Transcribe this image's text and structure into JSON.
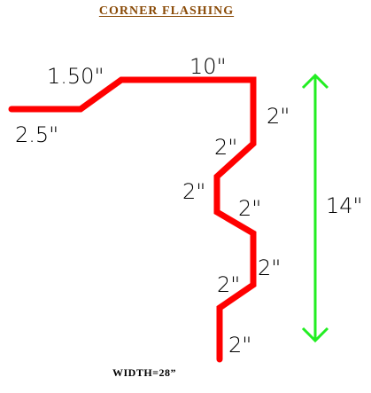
{
  "title": "CORNER  FLASHING",
  "footer": "WIDTH=28”",
  "colors": {
    "flashing": "#ff0000",
    "arrow": "#22ee22",
    "title": "#8a4b08"
  },
  "dimensions": {
    "seg1": "2.5\"",
    "seg2": "1.50\"",
    "seg3": "10\"",
    "seg4": "2\"",
    "seg5": "2\"",
    "seg6": "2\"",
    "seg7": "2\"",
    "seg8": "2\"",
    "seg9": "2\"",
    "seg10": "2\"",
    "height": "14\""
  }
}
